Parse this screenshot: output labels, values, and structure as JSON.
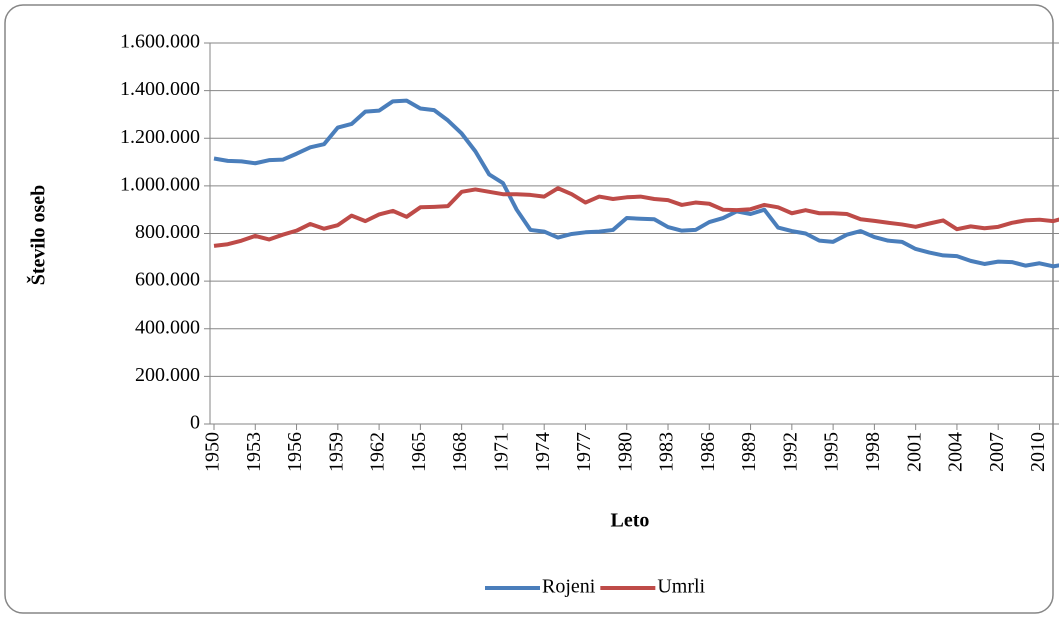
{
  "chart_data": {
    "type": "line",
    "x": [
      1950,
      1951,
      1952,
      1953,
      1954,
      1955,
      1956,
      1957,
      1958,
      1959,
      1960,
      1961,
      1962,
      1963,
      1964,
      1965,
      1966,
      1967,
      1968,
      1969,
      1970,
      1971,
      1972,
      1973,
      1974,
      1975,
      1976,
      1977,
      1978,
      1979,
      1980,
      1981,
      1982,
      1983,
      1984,
      1985,
      1986,
      1987,
      1988,
      1989,
      1990,
      1991,
      1992,
      1993,
      1994,
      1995,
      1996,
      1997,
      1998,
      1999,
      2000,
      2001,
      2002,
      2003,
      2004,
      2005,
      2006,
      2007,
      2008,
      2009,
      2010,
      2011,
      2012
    ],
    "series": [
      {
        "name": "Rojeni",
        "color": "#4a7ebb",
        "values": [
          1115000,
          1105000,
          1103000,
          1095000,
          1108000,
          1110000,
          1135000,
          1162000,
          1175000,
          1245000,
          1260000,
          1312000,
          1316000,
          1355000,
          1358000,
          1325000,
          1318000,
          1275000,
          1220000,
          1145000,
          1048000,
          1012000,
          900000,
          815000,
          808000,
          783000,
          798000,
          805000,
          808000,
          815000,
          865000,
          862000,
          860000,
          827000,
          812000,
          815000,
          848000,
          865000,
          893000,
          882000,
          900000,
          825000,
          810000,
          800000,
          770000,
          765000,
          795000,
          810000,
          785000,
          770000,
          765000,
          735000,
          720000,
          708000,
          705000,
          685000,
          672000,
          682000,
          680000,
          665000,
          675000,
          662000,
          672000
        ]
      },
      {
        "name": "Umrli",
        "color": "#be4b48",
        "values": [
          748000,
          755000,
          770000,
          790000,
          775000,
          795000,
          812000,
          840000,
          820000,
          835000,
          875000,
          852000,
          880000,
          895000,
          870000,
          910000,
          912000,
          915000,
          975000,
          985000,
          975000,
          965000,
          965000,
          962000,
          955000,
          990000,
          965000,
          930000,
          955000,
          945000,
          952000,
          955000,
          945000,
          940000,
          920000,
          930000,
          925000,
          900000,
          898000,
          902000,
          920000,
          910000,
          885000,
          898000,
          885000,
          885000,
          882000,
          860000,
          853000,
          845000,
          838000,
          828000,
          842000,
          855000,
          818000,
          830000,
          822000,
          828000,
          845000,
          855000,
          858000,
          852000,
          868000
        ]
      }
    ],
    "xlabel": "Leto",
    "ylabel": "Število oseb",
    "xlim": [
      1950,
      2012
    ],
    "xticks": [
      1950,
      1953,
      1956,
      1959,
      1962,
      1965,
      1968,
      1971,
      1974,
      1977,
      1980,
      1983,
      1986,
      1989,
      1992,
      1995,
      1998,
      2001,
      2004,
      2007,
      2010
    ],
    "ylim": [
      0,
      1600000
    ],
    "yticks": [
      0,
      {
        "value": 200000,
        "label": "200.000"
      },
      {
        "value": 400000,
        "label": "400.000"
      },
      {
        "value": 600000,
        "label": "600.000"
      },
      {
        "value": 800000,
        "label": "800.000"
      },
      {
        "value": 1000000,
        "label": "1.000.000"
      },
      {
        "value": 1200000,
        "label": "1.200.000"
      },
      {
        "value": 1400000,
        "label": "1.400.000"
      },
      {
        "value": 1600000,
        "label": "1.600.000"
      }
    ],
    "grid": true,
    "legend": "bottom"
  }
}
